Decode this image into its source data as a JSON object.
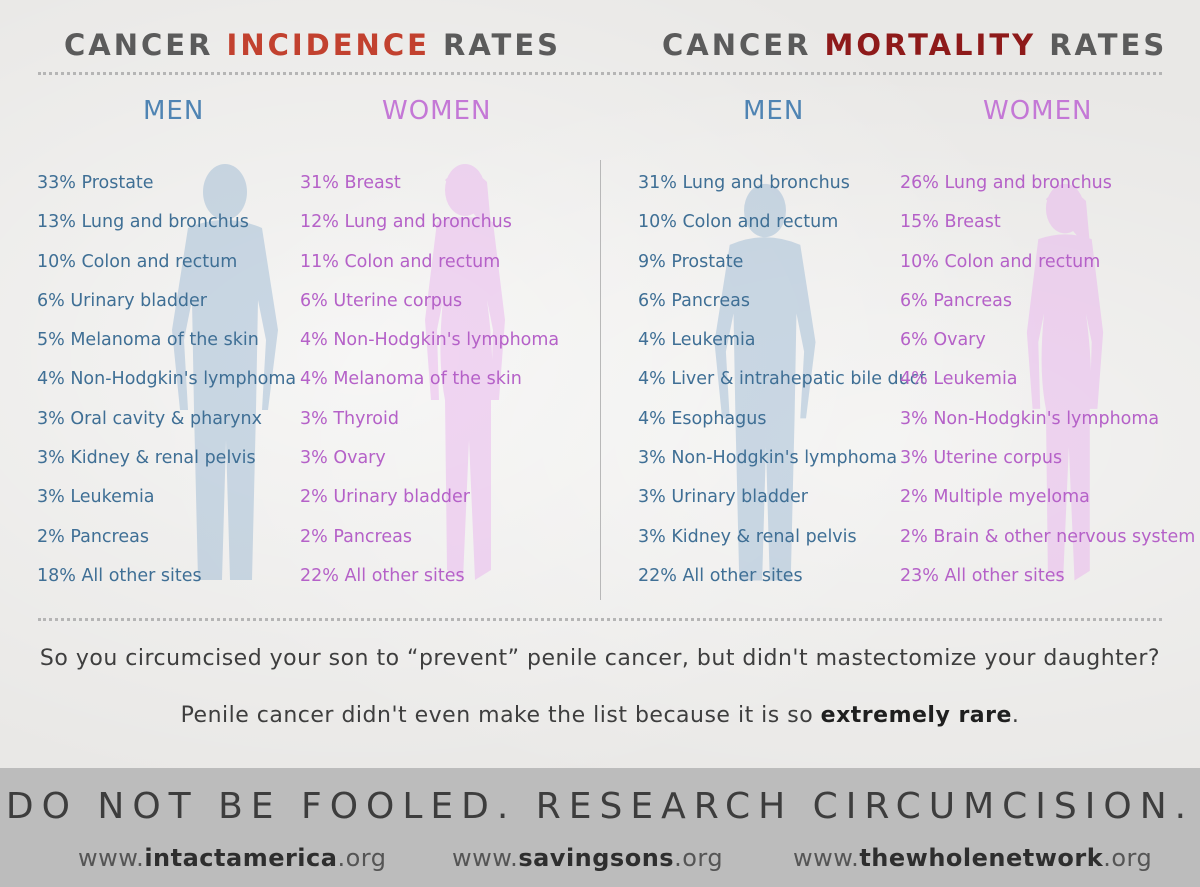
{
  "headings": {
    "incidence_pre": "CANCER ",
    "incidence_hl": "INCIDENCE",
    "incidence_post": " RATES",
    "mortality_pre": "CANCER ",
    "mortality_hl": "MORTALITY",
    "mortality_post": " RATES"
  },
  "incidence": {
    "men_label": "MEN",
    "women_label": "WOMEN",
    "men": [
      "33% Prostate",
      "13% Lung and bronchus",
      "10% Colon and rectum",
      "6% Urinary bladder",
      "5% Melanoma of the skin",
      "4% Non-Hodgkin's lymphoma",
      "3% Oral cavity & pharynx",
      "3% Kidney & renal pelvis",
      "3% Leukemia",
      "2% Pancreas",
      "18% All other sites"
    ],
    "women": [
      "31% Breast",
      "12% Lung and bronchus",
      "11% Colon and rectum",
      "6% Uterine corpus",
      "4% Non-Hodgkin's lymphoma",
      "4% Melanoma of the skin",
      "3% Thyroid",
      "3% Ovary",
      "2% Urinary bladder",
      "2% Pancreas",
      "22% All other sites"
    ]
  },
  "mortality": {
    "men_label": "MEN",
    "women_label": "WOMEN",
    "men": [
      "31% Lung and bronchus",
      "10% Colon and rectum",
      "9% Prostate",
      "6% Pancreas",
      "4% Leukemia",
      "4% Liver & intrahepatic bile duct",
      "4% Esophagus",
      "3% Non-Hodgkin's lymphoma",
      "3% Urinary bladder",
      "3% Kidney & renal pelvis",
      "22% All other sites"
    ],
    "women": [
      "26% Lung and bronchus",
      "15% Breast",
      "10% Colon and rectum",
      "6% Pancreas",
      "6% Ovary",
      "4% Leukemia",
      "3% Non-Hodgkin's lymphoma",
      "3% Uterine corpus",
      "2% Multiple myeloma",
      "2% Brain & other nervous system",
      "23% All other sites"
    ]
  },
  "question": "So you circumcised your son to “prevent” penile cancer, but didn't mastectomize your daughter?",
  "rare_pre": "Penile cancer didn't even make the list because it is so ",
  "rare_bold": "extremely rare",
  "rare_post": ".",
  "slogan": "DO NOT BE FOOLED. RESEARCH CIRCUMCISION.",
  "links": [
    {
      "pre": "www.",
      "bold": "intactamerica",
      "post": ".org"
    },
    {
      "pre": "www.",
      "bold": "savingsons",
      "post": ".org"
    },
    {
      "pre": "www.",
      "bold": "thewholenetwork",
      "post": ".org"
    }
  ],
  "colors": {
    "men": "#4f84b3",
    "women": "#c478d6",
    "incidence_highlight": "#c2412f",
    "mortality_highlight": "#8e1a1a"
  }
}
